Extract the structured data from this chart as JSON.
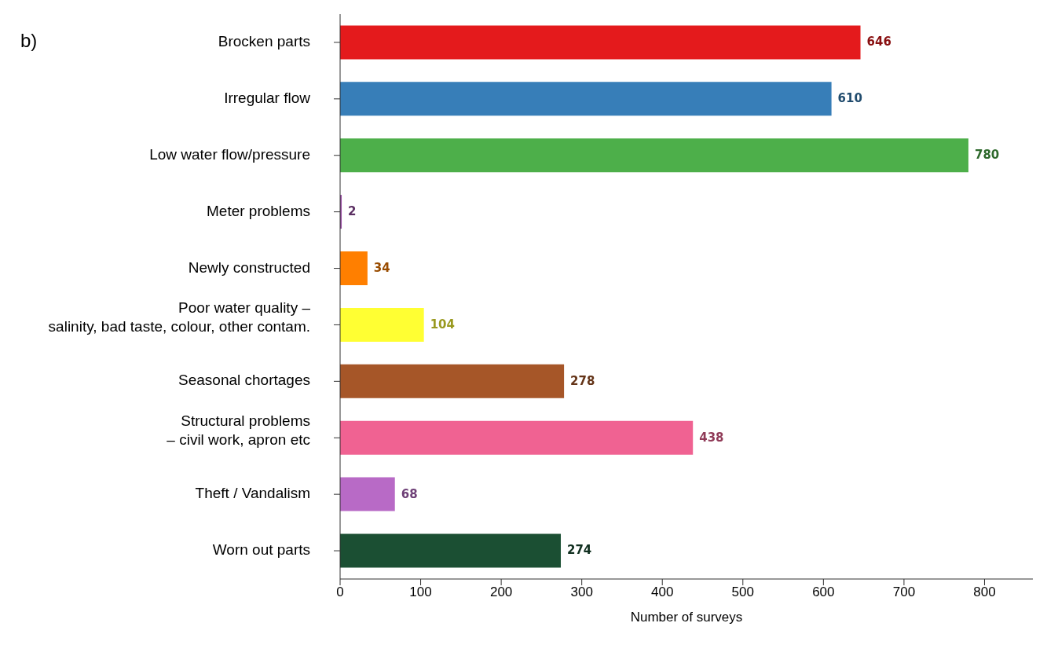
{
  "chart_data": {
    "type": "bar",
    "orientation": "horizontal",
    "xlabel": "Number of surveys",
    "annotations": [
      "b)"
    ],
    "categories": [
      "Brocken parts",
      "Irregular flow",
      "Low water flow/pressure",
      "Meter problems",
      "Newly constructed",
      "Poor water quality –\nsalinity, bad taste, colour, other contam.",
      "Seasonal chortages",
      "Structural problems\n– civil work, apron etc",
      "Theft / Vandalism",
      "Worn out parts"
    ],
    "values": [
      646,
      610,
      780,
      2,
      34,
      104,
      278,
      438,
      68,
      274
    ],
    "colors": [
      "#e41a1c",
      "#377eb8",
      "#4daf4a",
      "#984ea3",
      "#ff7f00",
      "#ffff33",
      "#a65628",
      "#f06292",
      "#b86ac6",
      "#1b4f33"
    ],
    "xlim": [
      0,
      860
    ],
    "xticks": [
      0,
      100,
      200,
      300,
      400,
      500,
      600,
      700,
      800
    ],
    "grid": false,
    "legend": false,
    "data_labels": true
  }
}
